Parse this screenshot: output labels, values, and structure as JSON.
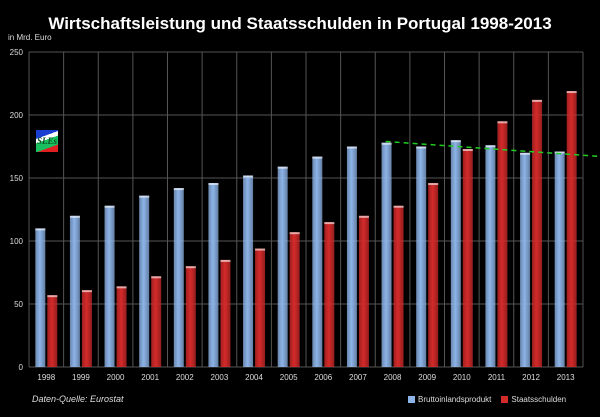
{
  "chart_data": {
    "type": "bar",
    "title": "Wirtschaftsleistung und Staatsschulden in Portugal 1998-2013",
    "ylabel": "in Mrd. Euro",
    "source": "Daten-Quelle: Eurostat",
    "logo_text": "SLEs",
    "ylim": [
      0,
      250
    ],
    "yticks": [
      0,
      50,
      100,
      150,
      200,
      250
    ],
    "grid": true,
    "legend_position": "bottom-right",
    "categories": [
      "1998",
      "1999",
      "2000",
      "2001",
      "2002",
      "2003",
      "2004",
      "2005",
      "2006",
      "2007",
      "2008",
      "2009",
      "2010",
      "2011",
      "2012",
      "2013"
    ],
    "series": [
      {
        "name": "Bruttoinlandsprodukt",
        "color": "#8db4e8",
        "values": [
          110,
          120,
          128,
          136,
          142,
          146,
          152,
          159,
          167,
          175,
          178,
          175,
          180,
          176,
          170,
          171
        ]
      },
      {
        "name": "Staatsschulden",
        "color": "#d42a2a",
        "values": [
          57,
          61,
          64,
          72,
          80,
          85,
          94,
          107,
          115,
          120,
          128,
          146,
          173,
          195,
          212,
          219
        ]
      }
    ],
    "trendline": {
      "color": "#22cc22",
      "style": "dashed",
      "from": {
        "x": "2008",
        "y": 179
      },
      "to": {
        "x": "2013",
        "y": 169
      }
    }
  }
}
